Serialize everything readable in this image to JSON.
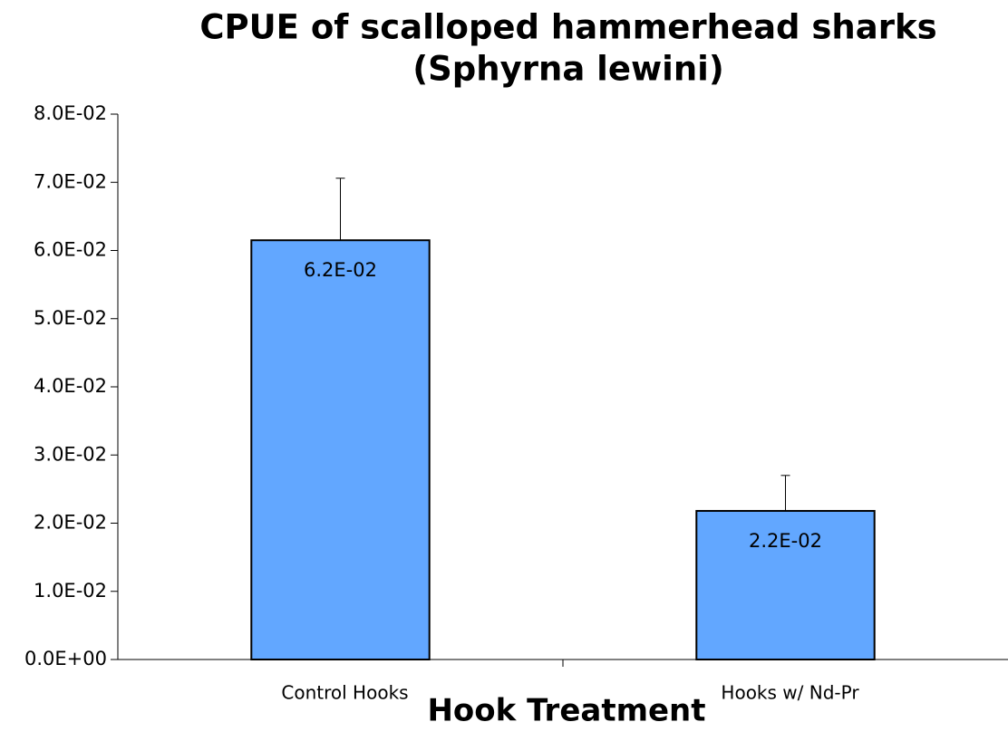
{
  "chart_data": {
    "type": "bar",
    "title": "CPUE of scalloped hammerhead sharks",
    "subtitle": "(Sphyrna lewini)",
    "x_label": "Hook Treatment",
    "categories": [
      "Control Hooks",
      "Hooks w/ Nd-Pr"
    ],
    "values": [
      0.0615,
      0.0218
    ],
    "value_labels": [
      "6.2E-02",
      "2.2E-02"
    ],
    "errors": [
      0.0091,
      0.0052
    ],
    "color": "#62a7ff",
    "ylim": [
      0,
      0.08
    ],
    "yticks": [
      {
        "value": 0,
        "label": "0.0E+00"
      },
      {
        "value": 0.01,
        "label": "1.0E-02"
      },
      {
        "value": 0.02,
        "label": "2.0E-02"
      },
      {
        "value": 0.03,
        "label": "3.0E-02"
      },
      {
        "value": 0.04,
        "label": "4.0E-02"
      },
      {
        "value": 0.05,
        "label": "5.0E-02"
      },
      {
        "value": 0.06,
        "label": "6.0E-02"
      },
      {
        "value": 0.07,
        "label": "7.0E-02"
      },
      {
        "value": 0.08,
        "label": "8.0E-02"
      }
    ],
    "grid": false
  }
}
